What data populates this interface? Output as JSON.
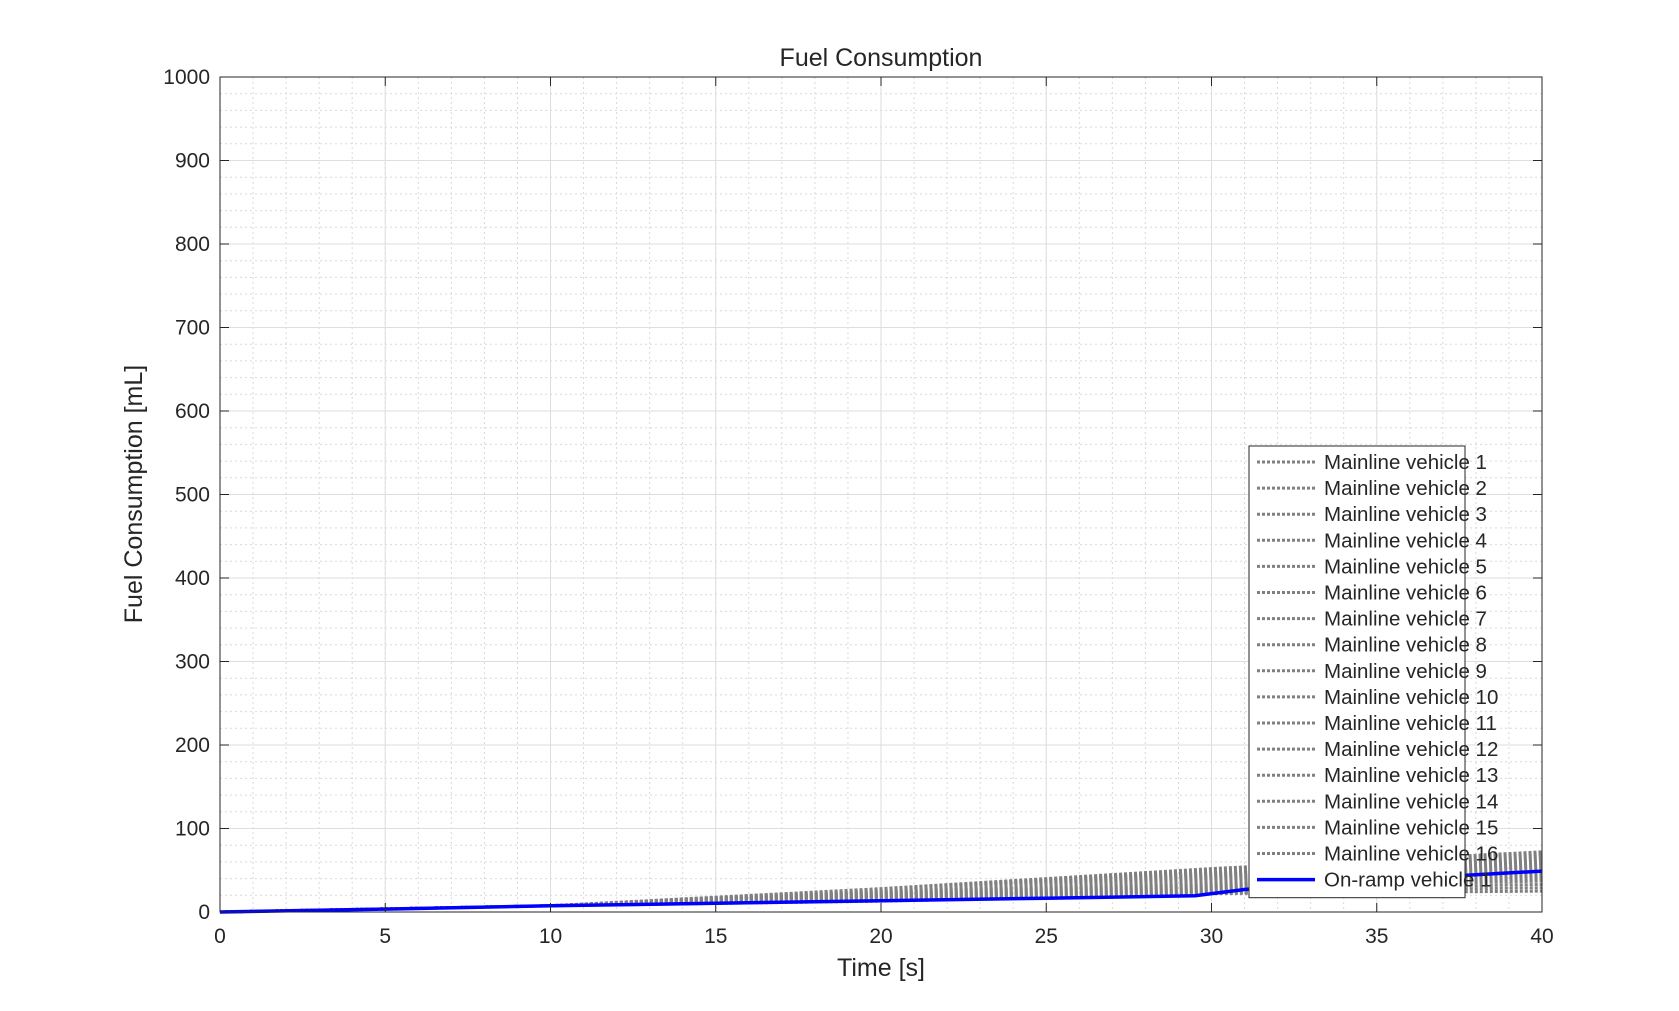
{
  "chart_data": {
    "type": "line",
    "title": "Fuel Consumption",
    "xlabel": "Time [s]",
    "ylabel": "Fuel Consumption [mL]",
    "xlim": [
      0,
      40
    ],
    "ylim": [
      0,
      1000
    ],
    "xticks": [
      0,
      5,
      10,
      15,
      20,
      25,
      30,
      35,
      40
    ],
    "yticks": [
      0,
      100,
      200,
      300,
      400,
      500,
      600,
      700,
      800,
      900,
      1000
    ],
    "grid": true,
    "minor_grid": true,
    "legend_position": "bottom-right",
    "colors": {
      "mainline": "#808080",
      "onramp": "#0000ff"
    },
    "series": [
      {
        "name": "Mainline vehicle 1",
        "style": "dotted",
        "x": [
          0,
          10,
          20,
          30,
          40
        ],
        "y": [
          0,
          7.5,
          28,
          52,
          72
        ]
      },
      {
        "name": "Mainline vehicle 2",
        "style": "dotted",
        "x": [
          0,
          10,
          20,
          30,
          40
        ],
        "y": [
          0,
          7.5,
          27,
          50,
          70
        ]
      },
      {
        "name": "Mainline vehicle 3",
        "style": "dotted",
        "x": [
          0,
          10,
          20,
          30,
          40
        ],
        "y": [
          0,
          7.5,
          26,
          48,
          67
        ]
      },
      {
        "name": "Mainline vehicle 4",
        "style": "dotted",
        "x": [
          0,
          10,
          20,
          30,
          40
        ],
        "y": [
          0,
          7.5,
          25,
          46,
          64
        ]
      },
      {
        "name": "Mainline vehicle 5",
        "style": "dotted",
        "x": [
          0,
          10,
          20,
          30,
          40
        ],
        "y": [
          0,
          7.5,
          24,
          44,
          61
        ]
      },
      {
        "name": "Mainline vehicle 6",
        "style": "dotted",
        "x": [
          0,
          10,
          20,
          30,
          40
        ],
        "y": [
          0,
          7.5,
          23,
          42,
          58
        ]
      },
      {
        "name": "Mainline vehicle 7",
        "style": "dotted",
        "x": [
          0,
          10,
          20,
          30,
          40
        ],
        "y": [
          0,
          7.5,
          22,
          40,
          55
        ]
      },
      {
        "name": "Mainline vehicle 8",
        "style": "dotted",
        "x": [
          0,
          10,
          20,
          30,
          40
        ],
        "y": [
          0,
          7.5,
          21,
          38,
          52
        ]
      },
      {
        "name": "Mainline vehicle 9",
        "style": "dotted",
        "x": [
          0,
          10,
          20,
          30,
          40
        ],
        "y": [
          0,
          7.5,
          20,
          36,
          49
        ]
      },
      {
        "name": "Mainline vehicle 10",
        "style": "dotted",
        "x": [
          0,
          10,
          20,
          30,
          40
        ],
        "y": [
          0,
          7.5,
          19,
          34,
          46
        ]
      },
      {
        "name": "Mainline vehicle 11",
        "style": "dotted",
        "x": [
          0,
          10,
          20,
          30,
          40
        ],
        "y": [
          0,
          7.5,
          18,
          32,
          43
        ]
      },
      {
        "name": "Mainline vehicle 12",
        "style": "dotted",
        "x": [
          0,
          10,
          20,
          30,
          40
        ],
        "y": [
          0,
          7.5,
          17,
          30,
          40
        ]
      },
      {
        "name": "Mainline vehicle 13",
        "style": "dotted",
        "x": [
          0,
          10,
          20,
          30,
          40
        ],
        "y": [
          0,
          7.5,
          16,
          28,
          37
        ]
      },
      {
        "name": "Mainline vehicle 14",
        "style": "dotted",
        "x": [
          0,
          10,
          20,
          30,
          40
        ],
        "y": [
          0,
          7.5,
          15,
          26,
          33
        ]
      },
      {
        "name": "Mainline vehicle 15",
        "style": "dotted",
        "x": [
          0,
          10,
          20,
          30,
          40
        ],
        "y": [
          0,
          7.5,
          14,
          24,
          29
        ]
      },
      {
        "name": "Mainline vehicle 16",
        "style": "dotted",
        "x": [
          0,
          10,
          20,
          30,
          40
        ],
        "y": [
          0,
          7.5,
          13,
          22,
          25
        ]
      },
      {
        "name": "On-ramp vehicle 1",
        "style": "solid",
        "x": [
          0,
          5,
          10,
          15,
          20,
          25,
          29.5,
          31,
          35,
          40
        ],
        "y": [
          0,
          3.5,
          7.5,
          10.5,
          13.5,
          16.5,
          19.5,
          27,
          38,
          49
        ]
      }
    ]
  }
}
